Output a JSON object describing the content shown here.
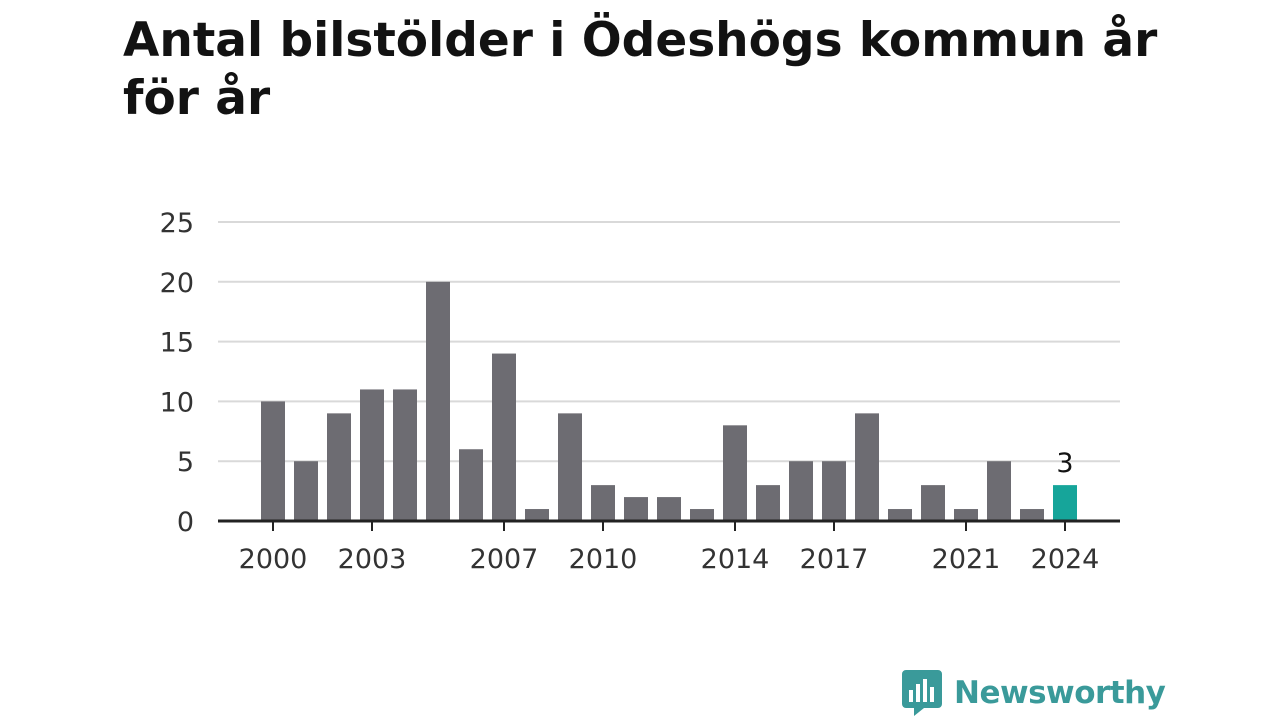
{
  "title": "Antal bilstölder i Ödeshögs kommun år för år",
  "brand": {
    "name": "Newsworthy",
    "color": "#3a9a9a"
  },
  "colors": {
    "bar": "#6d6c72",
    "highlight": "#16a59a",
    "grid": "#d9d9d9",
    "axis": "#222222"
  },
  "chart_data": {
    "type": "bar",
    "title": "Antal bilstölder i Ödeshögs kommun år för år",
    "xlabel": "",
    "ylabel": "",
    "x": [
      2000,
      2001,
      2002,
      2003,
      2004,
      2005,
      2006,
      2007,
      2008,
      2009,
      2010,
      2011,
      2012,
      2013,
      2014,
      2015,
      2016,
      2017,
      2018,
      2019,
      2020,
      2021,
      2022,
      2023,
      2024
    ],
    "values": [
      10,
      5,
      9,
      11,
      11,
      20,
      6,
      14,
      1,
      9,
      3,
      2,
      2,
      1,
      8,
      3,
      5,
      5,
      9,
      1,
      3,
      1,
      5,
      1,
      3
    ],
    "x_tick_labels": [
      "2000",
      "2003",
      "2007",
      "2010",
      "2014",
      "2017",
      "2021",
      "2024"
    ],
    "y_ticks": [
      0,
      5,
      10,
      15,
      20,
      25
    ],
    "ylim": [
      0,
      25
    ],
    "grid": true,
    "legend": "none",
    "highlight": {
      "x": 2024,
      "label": "3"
    }
  }
}
